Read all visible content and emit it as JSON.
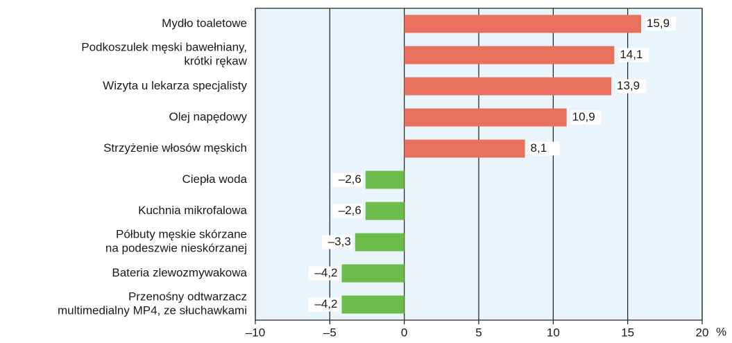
{
  "chart_data": {
    "type": "bar",
    "orientation": "horizontal",
    "categories": [
      "Mydło toaletowe",
      "Podkoszulek męski bawełniany,\nkrótki rękaw",
      "Wizyta u lekarza specjalisty",
      "Olej napędowy",
      "Strzyżenie włosów męskich",
      "Ciepła woda",
      "Kuchnia mikrofalowa",
      "Półbuty męskie skórzane\nna podeszwie nieskórzanej",
      "Bateria zlewozmywakowa",
      "Przenośny odtwarzacz\nmultimedialny MP4, ze słuchawkami"
    ],
    "values": [
      15.9,
      14.1,
      13.9,
      10.9,
      8.1,
      -2.6,
      -2.6,
      -3.3,
      -4.2,
      -4.2
    ],
    "value_labels": [
      "15,9",
      "14,1",
      "13,9",
      "10,9",
      "8,1",
      "–2,6",
      "–2,6",
      "–3,3",
      "–4,2",
      "–4,2"
    ],
    "positive_color": "#e8705f",
    "negative_color": "#6dbb4b",
    "xlim": [
      -10,
      20
    ],
    "xticks": [
      {
        "value": -10,
        "label": "–10"
      },
      {
        "value": -5,
        "label": "–5"
      },
      0,
      5,
      10,
      15,
      20
    ],
    "x_unit": "%",
    "grid": true
  }
}
